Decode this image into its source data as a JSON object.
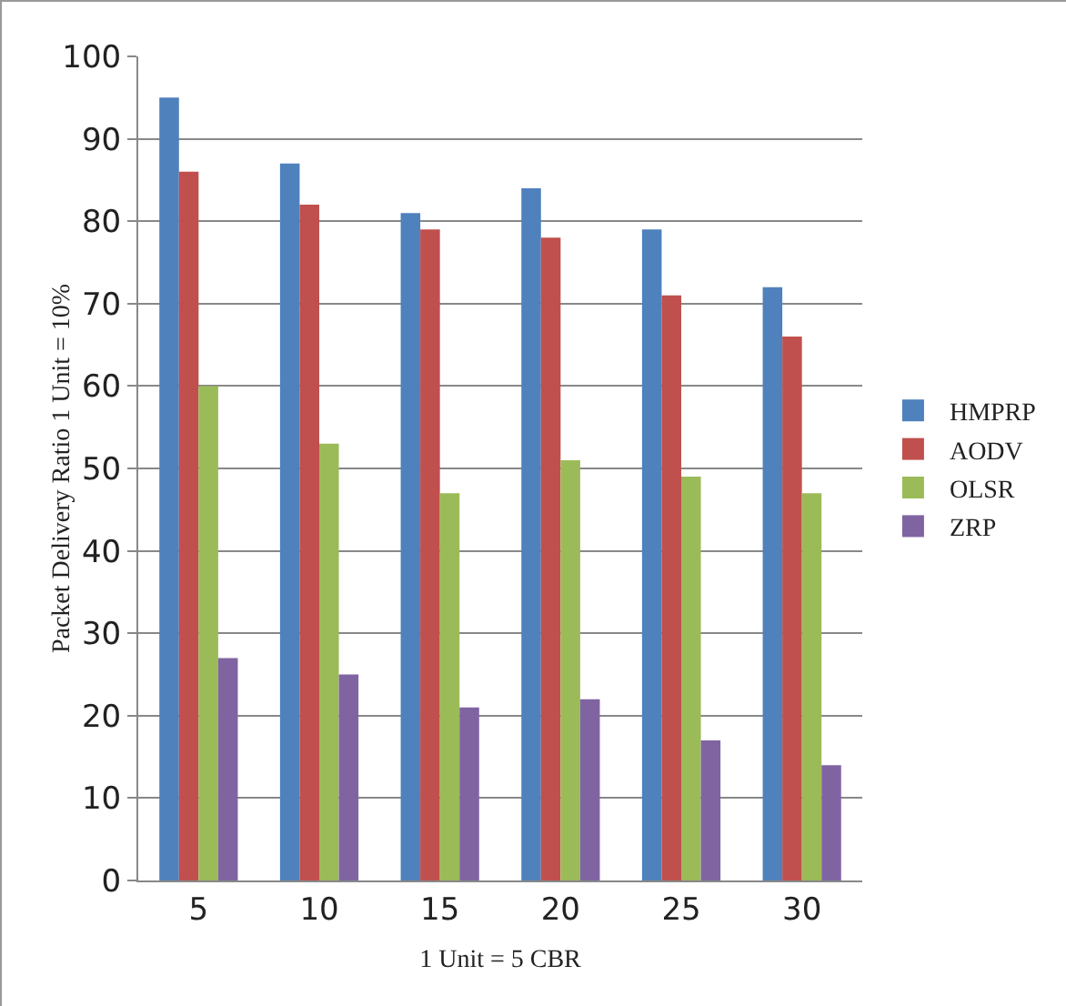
{
  "chart_data": {
    "type": "bar",
    "xlabel": "1 Unit = 5 CBR",
    "ylabel": "Packet Delivery Ratio 1 Unit = 10%",
    "categories": [
      "5",
      "10",
      "15",
      "20",
      "25",
      "30"
    ],
    "series": [
      {
        "name": "HMPRP",
        "color": "#4f81bd",
        "values": [
          95,
          87,
          81,
          84,
          79,
          72
        ]
      },
      {
        "name": "AODV",
        "color": "#c0504d",
        "values": [
          86,
          82,
          79,
          78,
          71,
          66
        ]
      },
      {
        "name": "OLSR",
        "color": "#9bbb59",
        "values": [
          60,
          53,
          47,
          51,
          49,
          47
        ]
      },
      {
        "name": "ZRP",
        "color": "#8064a2",
        "values": [
          27,
          25,
          21,
          22,
          17,
          14
        ]
      }
    ],
    "ylim": [
      0,
      100
    ],
    "yticks": [
      0,
      10,
      20,
      30,
      40,
      50,
      60,
      70,
      80,
      90,
      100
    ],
    "grid": "y",
    "legend": "right"
  }
}
